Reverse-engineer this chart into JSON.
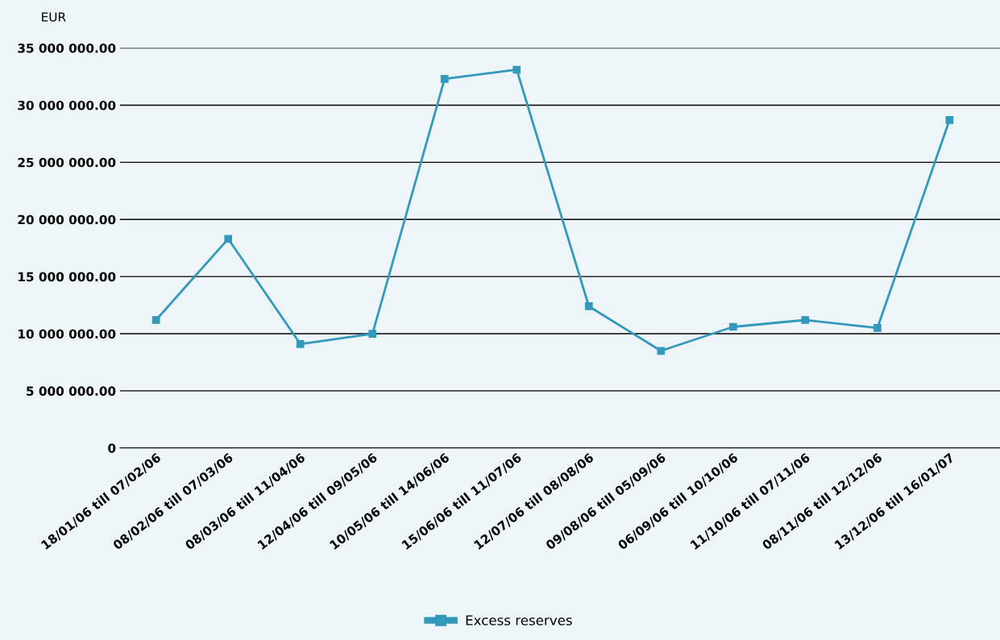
{
  "chart_data": {
    "type": "line",
    "ylabel": "EUR",
    "categories": [
      "18/01/06 till 07/02/06",
      "08/02/06 till 07/03/06",
      "08/03/06 till 11/04/06",
      "12/04/06 till 09/05/06",
      "10/05/06 till 14/06/06",
      "15/06/06 till 11/07/06",
      "12/07/06 till 08/08/06",
      "09/08/06 till 05/09/06",
      "06/09/06 till 10/10/06",
      "11/10/06 till 07/11/06",
      "08/11/06 till 12/12/06",
      "13/12/06 till 16/01/07"
    ],
    "series": [
      {
        "name": "Excess reserves",
        "color": "#3399bb",
        "values": [
          11200000,
          18300000,
          9100000,
          10000000,
          32300000,
          33100000,
          12400000,
          8500000,
          10600000,
          11200000,
          10500000,
          28700000
        ]
      }
    ],
    "ylim": [
      0,
      35000000
    ],
    "yticks": [
      {
        "value": 0,
        "label": "0"
      },
      {
        "value": 5000000,
        "label": "5 000 000.00"
      },
      {
        "value": 10000000,
        "label": "10 000 000.00"
      },
      {
        "value": 15000000,
        "label": "15 000 000.00"
      },
      {
        "value": 20000000,
        "label": "20 000 000.00"
      },
      {
        "value": 25000000,
        "label": "25 000 000.00"
      },
      {
        "value": 30000000,
        "label": "30 000 000.00"
      },
      {
        "value": 35000000,
        "label": "35 000 000.00"
      }
    ],
    "grid": "y",
    "legend": "bottom",
    "marker": "square",
    "line_style": "solid"
  }
}
